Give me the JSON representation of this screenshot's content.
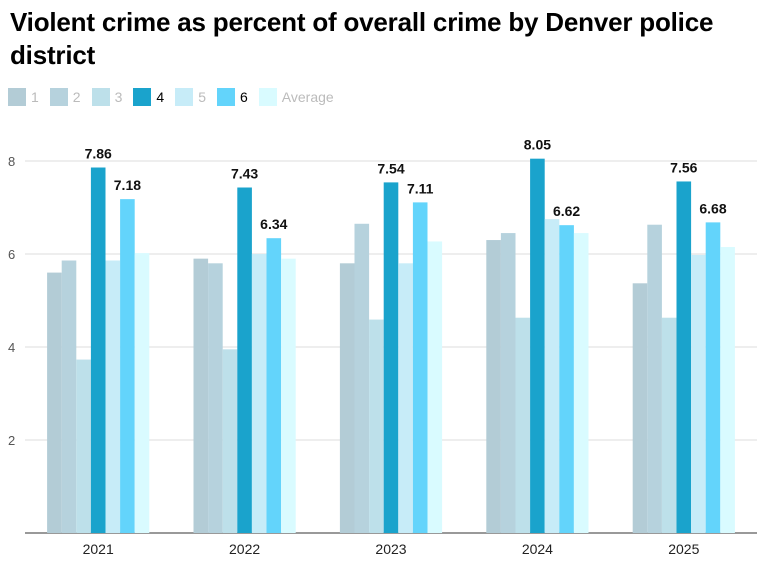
{
  "title": "Violent crime as percent of overall crime by Denver police district",
  "legend": [
    {
      "name": "1",
      "color": "#b3ccd6",
      "highlighted": false
    },
    {
      "name": "2",
      "color": "#b6d2dd",
      "highlighted": false
    },
    {
      "name": "3",
      "color": "#bde0ea",
      "highlighted": false
    },
    {
      "name": "4",
      "color": "#1aa3cc",
      "highlighted": true
    },
    {
      "name": "5",
      "color": "#c7ecf8",
      "highlighted": false
    },
    {
      "name": "6",
      "color": "#63d4fb",
      "highlighted": true
    },
    {
      "name": "Average",
      "color": "#d9fbff",
      "highlighted": false
    }
  ],
  "chart_data": {
    "type": "bar",
    "title": "Violent crime as percent of overall crime by Denver police district",
    "xlabel": "",
    "ylabel": "",
    "categories": [
      "2021",
      "2022",
      "2023",
      "2024",
      "2025"
    ],
    "ylim": [
      0,
      8.5
    ],
    "yticks": [
      2,
      4,
      6,
      8
    ],
    "grid": true,
    "legend_position": "top-left",
    "series": [
      {
        "name": "1",
        "values": [
          5.6,
          5.9,
          5.8,
          6.3,
          5.37
        ],
        "color": "#b3ccd6",
        "labeled": false
      },
      {
        "name": "2",
        "values": [
          5.86,
          5.8,
          6.65,
          6.45,
          6.63
        ],
        "color": "#b6d2dd",
        "labeled": false
      },
      {
        "name": "3",
        "values": [
          3.73,
          3.95,
          4.59,
          4.63,
          4.63
        ],
        "color": "#bde0ea",
        "labeled": false
      },
      {
        "name": "4",
        "values": [
          7.86,
          7.43,
          7.54,
          8.05,
          7.56
        ],
        "color": "#1aa3cc",
        "labeled": true
      },
      {
        "name": "5",
        "values": [
          5.86,
          6.0,
          5.8,
          6.75,
          5.98
        ],
        "color": "#c7ecf8",
        "labeled": false
      },
      {
        "name": "6",
        "values": [
          7.18,
          6.34,
          7.11,
          6.62,
          6.68
        ],
        "color": "#63d4fb",
        "labeled": true
      },
      {
        "name": "Average",
        "values": [
          6.02,
          5.9,
          6.27,
          6.45,
          6.15
        ],
        "color": "#d9fbff",
        "labeled": false
      }
    ]
  }
}
